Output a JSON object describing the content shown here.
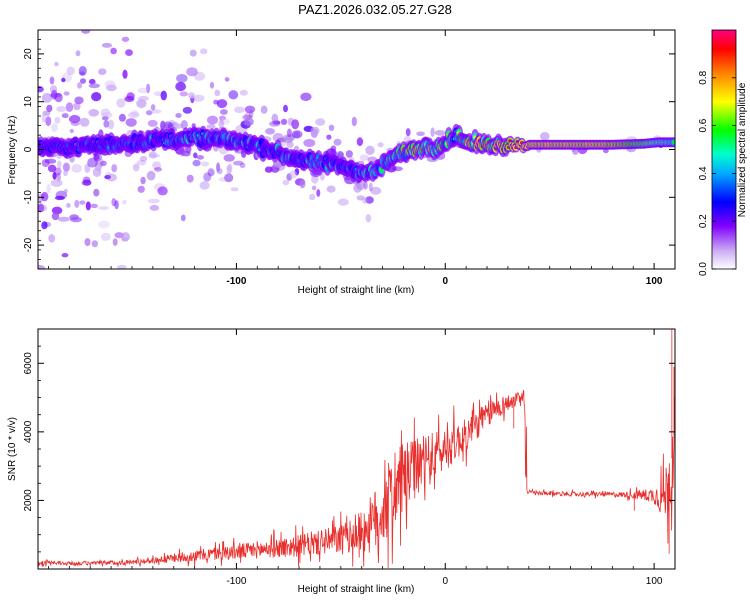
{
  "title": "PAZ1.2026.032.05.27.G28",
  "chart_data": [
    {
      "type": "heatmap",
      "title": "PAZ1.2026.032.05.27.G28",
      "xlabel": "Height of straight line (km)",
      "ylabel": "Frequency (Hz)",
      "xlim": [
        -195,
        110
      ],
      "ylim": [
        -25,
        25
      ],
      "x_ticks": [
        -100,
        0,
        100
      ],
      "x_tick_labels": [
        "-100",
        "0",
        "100"
      ],
      "y_ticks": [
        -20,
        -10,
        0,
        10,
        20
      ],
      "y_tick_labels": [
        "-20",
        "-10",
        "0",
        "10",
        "20"
      ],
      "colorbar": {
        "label": "Normalized spectral amplitude",
        "range": [
          0,
          1
        ],
        "ticks": [
          0.0,
          0.2,
          0.4,
          0.6,
          0.8
        ],
        "tick_labels": [
          "0.0",
          "0.2",
          "0.4",
          "0.6",
          "0.8"
        ],
        "colormap": [
          "#ffffff",
          "#8000ff",
          "#0000ff",
          "#00ffff",
          "#00ff00",
          "#ffff00",
          "#ff8000",
          "#ff0000",
          "#ff0080"
        ]
      },
      "ridge": {
        "x": [
          -195,
          -180,
          -165,
          -150,
          -135,
          -120,
          -105,
          -95,
          -85,
          -75,
          -65,
          -55,
          -45,
          -38,
          -32,
          -25,
          -18,
          -12,
          -5,
          0,
          5,
          10,
          20,
          40,
          60,
          80,
          95,
          102,
          110
        ],
        "y": [
          0.5,
          0.5,
          1,
          1.5,
          2,
          2.5,
          2,
          1.5,
          0,
          -1.5,
          -2.5,
          -3,
          -4,
          -5,
          -4,
          -1.5,
          -0.5,
          0.5,
          0.5,
          1.5,
          3,
          1.5,
          1,
          1,
          1,
          1,
          1.2,
          1.5,
          1.5
        ],
        "amplitude": [
          0.2,
          0.25,
          0.3,
          0.35,
          0.4,
          0.45,
          0.4,
          0.45,
          0.4,
          0.45,
          0.4,
          0.45,
          0.4,
          0.5,
          0.45,
          0.6,
          0.75,
          0.85,
          0.8,
          0.7,
          0.6,
          0.85,
          0.95,
          1.0,
          1.0,
          0.95,
          0.8,
          0.7,
          0.6
        ]
      }
    },
    {
      "type": "line",
      "xlabel": "Height of straight line (km)",
      "ylabel": "SNR (10 * v/v)",
      "xlim": [
        -195,
        110
      ],
      "ylim": [
        0,
        7000
      ],
      "x_ticks": [
        -100,
        0,
        100
      ],
      "x_tick_labels": [
        "-100",
        "0",
        "100"
      ],
      "y_ticks": [
        2000,
        4000,
        6000
      ],
      "y_tick_labels": [
        "2000",
        "4000",
        "6000"
      ],
      "color": "#e8302e",
      "series": [
        {
          "name": "SNR",
          "x": [
            -195,
            -180,
            -165,
            -150,
            -140,
            -130,
            -120,
            -110,
            -100,
            -90,
            -80,
            -70,
            -60,
            -50,
            -45,
            -40,
            -35,
            -30,
            -25,
            -20,
            -15,
            -10,
            -5,
            0,
            5,
            10,
            15,
            20,
            25,
            30,
            35,
            38,
            39,
            45,
            55,
            65,
            75,
            85,
            95,
            100,
            105,
            108,
            110
          ],
          "y": [
            180,
            160,
            170,
            200,
            250,
            320,
            380,
            450,
            500,
            560,
            620,
            680,
            760,
            880,
            950,
            1100,
            1300,
            1700,
            2200,
            2600,
            2900,
            3100,
            3300,
            3500,
            3700,
            3900,
            4200,
            4500,
            4700,
            4850,
            4950,
            4900,
            2250,
            2200,
            2200,
            2180,
            2180,
            2170,
            2160,
            2150,
            2100,
            2900,
            4200
          ],
          "noise": [
            70,
            70,
            80,
            90,
            110,
            150,
            200,
            250,
            280,
            320,
            360,
            400,
            450,
            550,
            600,
            800,
            1100,
            1300,
            1500,
            1300,
            1100,
            1000,
            900,
            800,
            700,
            600,
            550,
            500,
            400,
            300,
            250,
            200,
            80,
            80,
            80,
            80,
            90,
            100,
            200,
            300,
            900,
            1600,
            1500
          ]
        }
      ],
      "spikes": [
        {
          "x": 32.8,
          "y": 4100
        },
        {
          "x": 90.5,
          "y": 1700
        },
        {
          "x": 106.5,
          "y": 1100
        },
        {
          "x": 107.2,
          "y": 450
        },
        {
          "x": 108.5,
          "y": 7000
        },
        {
          "x": 109.5,
          "y": 5900
        }
      ]
    }
  ]
}
